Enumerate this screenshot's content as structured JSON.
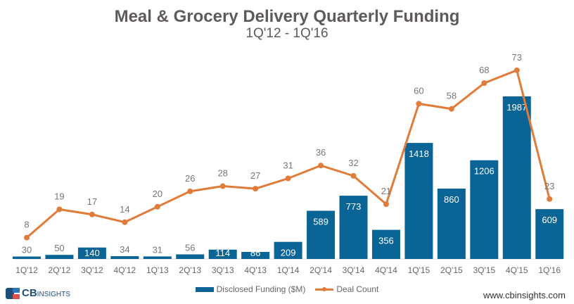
{
  "chart_data": {
    "type": "bar+line",
    "title": "Meal & Grocery Delivery Quarterly Funding",
    "subtitle": "1Q'12 - 1Q'16",
    "categories": [
      "1Q'12",
      "2Q'12",
      "3Q'12",
      "4Q'12",
      "1Q'13",
      "2Q'13",
      "3Q'13",
      "4Q'13",
      "1Q'14",
      "2Q'14",
      "3Q'14",
      "4Q'14",
      "1Q'15",
      "2Q'15",
      "3Q'15",
      "4Q'15",
      "1Q'16"
    ],
    "series": [
      {
        "name": "Disclosed Funding ($M)",
        "type": "bar",
        "color": "#0a6596",
        "values": [
          30,
          50,
          140,
          34,
          31,
          56,
          114,
          86,
          209,
          589,
          773,
          356,
          1418,
          860,
          1206,
          1987,
          609
        ]
      },
      {
        "name": "Deal Count",
        "type": "line",
        "color": "#e07b39",
        "values": [
          8,
          19,
          17,
          14,
          20,
          26,
          28,
          27,
          31,
          36,
          32,
          21,
          60,
          58,
          68,
          73,
          23
        ]
      }
    ],
    "data_labels": true,
    "grid": false,
    "legend_placement": "bottom"
  },
  "footer": {
    "logo_text_main": "CB",
    "logo_text_sub": "INSIGHTS",
    "url": "www.cbinsights.com"
  }
}
